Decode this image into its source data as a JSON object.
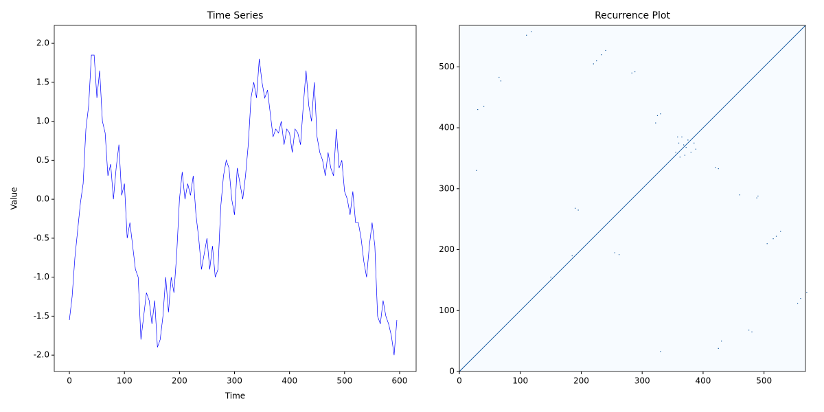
{
  "chart_data": [
    {
      "type": "line",
      "title": "Time Series",
      "xlabel": "Time",
      "ylabel": "Value",
      "color": "#0000ff",
      "x": [
        0,
        5,
        10,
        15,
        20,
        25,
        30,
        35,
        40,
        45,
        50,
        55,
        60,
        65,
        70,
        75,
        80,
        85,
        90,
        95,
        100,
        105,
        110,
        115,
        120,
        125,
        130,
        135,
        140,
        145,
        150,
        155,
        160,
        165,
        170,
        175,
        180,
        185,
        190,
        195,
        200,
        205,
        210,
        215,
        220,
        225,
        230,
        235,
        240,
        245,
        250,
        255,
        260,
        265,
        270,
        275,
        280,
        285,
        290,
        295,
        300,
        305,
        310,
        315,
        320,
        325,
        330,
        335,
        340,
        345,
        350,
        355,
        360,
        365,
        370,
        375,
        380,
        385,
        390,
        395,
        400,
        405,
        410,
        415,
        420,
        425,
        430,
        435,
        440,
        445,
        450,
        455,
        460,
        465,
        470,
        475,
        480,
        485,
        490,
        495,
        500,
        505,
        510,
        515,
        520,
        525,
        530,
        535,
        540,
        545,
        550,
        555,
        560,
        565,
        570,
        575,
        580,
        585,
        590,
        595
      ],
      "values": [
        -1.55,
        -1.25,
        -0.75,
        -0.4,
        -0.05,
        0.2,
        0.9,
        1.2,
        1.85,
        1.85,
        1.3,
        1.65,
        1.0,
        0.85,
        0.3,
        0.45,
        0.0,
        0.4,
        0.7,
        0.05,
        0.2,
        -0.5,
        -0.3,
        -0.6,
        -0.9,
        -1.0,
        -1.8,
        -1.5,
        -1.2,
        -1.3,
        -1.6,
        -1.3,
        -1.9,
        -1.8,
        -1.5,
        -1.0,
        -1.45,
        -1.0,
        -1.2,
        -0.7,
        0.0,
        0.35,
        0.0,
        0.2,
        0.05,
        0.3,
        -0.2,
        -0.5,
        -0.9,
        -0.7,
        -0.5,
        -0.9,
        -0.6,
        -1.0,
        -0.9,
        -0.1,
        0.3,
        0.5,
        0.4,
        0.0,
        -0.2,
        0.4,
        0.2,
        0.0,
        0.3,
        0.7,
        1.3,
        1.5,
        1.3,
        1.8,
        1.5,
        1.3,
        1.4,
        1.1,
        0.8,
        0.9,
        0.85,
        1.0,
        0.7,
        0.9,
        0.85,
        0.6,
        0.9,
        0.85,
        0.7,
        1.2,
        1.65,
        1.2,
        1.0,
        1.5,
        0.8,
        0.6,
        0.5,
        0.3,
        0.6,
        0.4,
        0.3,
        0.9,
        0.4,
        0.5,
        0.1,
        0.0,
        -0.2,
        0.1,
        -0.3,
        -0.3,
        -0.5,
        -0.8,
        -1.0,
        -0.6,
        -0.3,
        -0.6,
        -1.5,
        -1.6,
        -1.3,
        -1.5,
        -1.6,
        -1.75,
        -2.0,
        -1.55
      ],
      "xlim": [
        -27.5,
        630
      ],
      "ylim": [
        -2.21,
        2.23
      ],
      "xticks": [
        0,
        100,
        200,
        300,
        400,
        500,
        600
      ],
      "yticks": [
        {
          "value": -2,
          "label": "-2.0"
        },
        -1.5,
        {
          "value": -1,
          "label": "-1.0"
        },
        -0.5,
        {
          "value": 0,
          "label": "0.0"
        },
        0.5,
        {
          "value": 1,
          "label": "1.0"
        },
        1.5,
        {
          "value": 2,
          "label": "2.0"
        }
      ]
    },
    {
      "type": "recurrence",
      "title": "Recurrence Plot",
      "color": "#08519c",
      "background": "#f7fbff",
      "diagonal": true,
      "x": [
        355,
        360,
        365,
        375,
        380,
        385,
        370,
        358,
        388,
        362,
        372,
        368,
        220,
        225,
        233,
        240,
        283,
        288,
        65,
        68,
        30,
        40,
        325,
        330,
        28,
        420,
        425,
        460,
        488,
        490,
        505,
        515,
        520,
        527,
        190,
        195,
        255,
        262,
        185,
        430,
        425,
        330,
        475,
        480,
        555,
        560,
        570,
        150,
        322,
        110,
        118
      ],
      "y": [
        360,
        375,
        385,
        380,
        360,
        375,
        355,
        385,
        365,
        352,
        368,
        372,
        505,
        510,
        520,
        527,
        490,
        492,
        483,
        477,
        430,
        435,
        420,
        423,
        330,
        335,
        333,
        290,
        285,
        288,
        210,
        218,
        222,
        230,
        268,
        265,
        195,
        192,
        190,
        50,
        38,
        33,
        68,
        65,
        112,
        120,
        130,
        155,
        408,
        552,
        558
      ],
      "xlim": [
        0,
        568
      ],
      "ylim": [
        0,
        568
      ],
      "xticks": [
        0,
        100,
        200,
        300,
        400,
        500
      ],
      "yticks": [
        0,
        100,
        200,
        300,
        400,
        500
      ]
    }
  ]
}
